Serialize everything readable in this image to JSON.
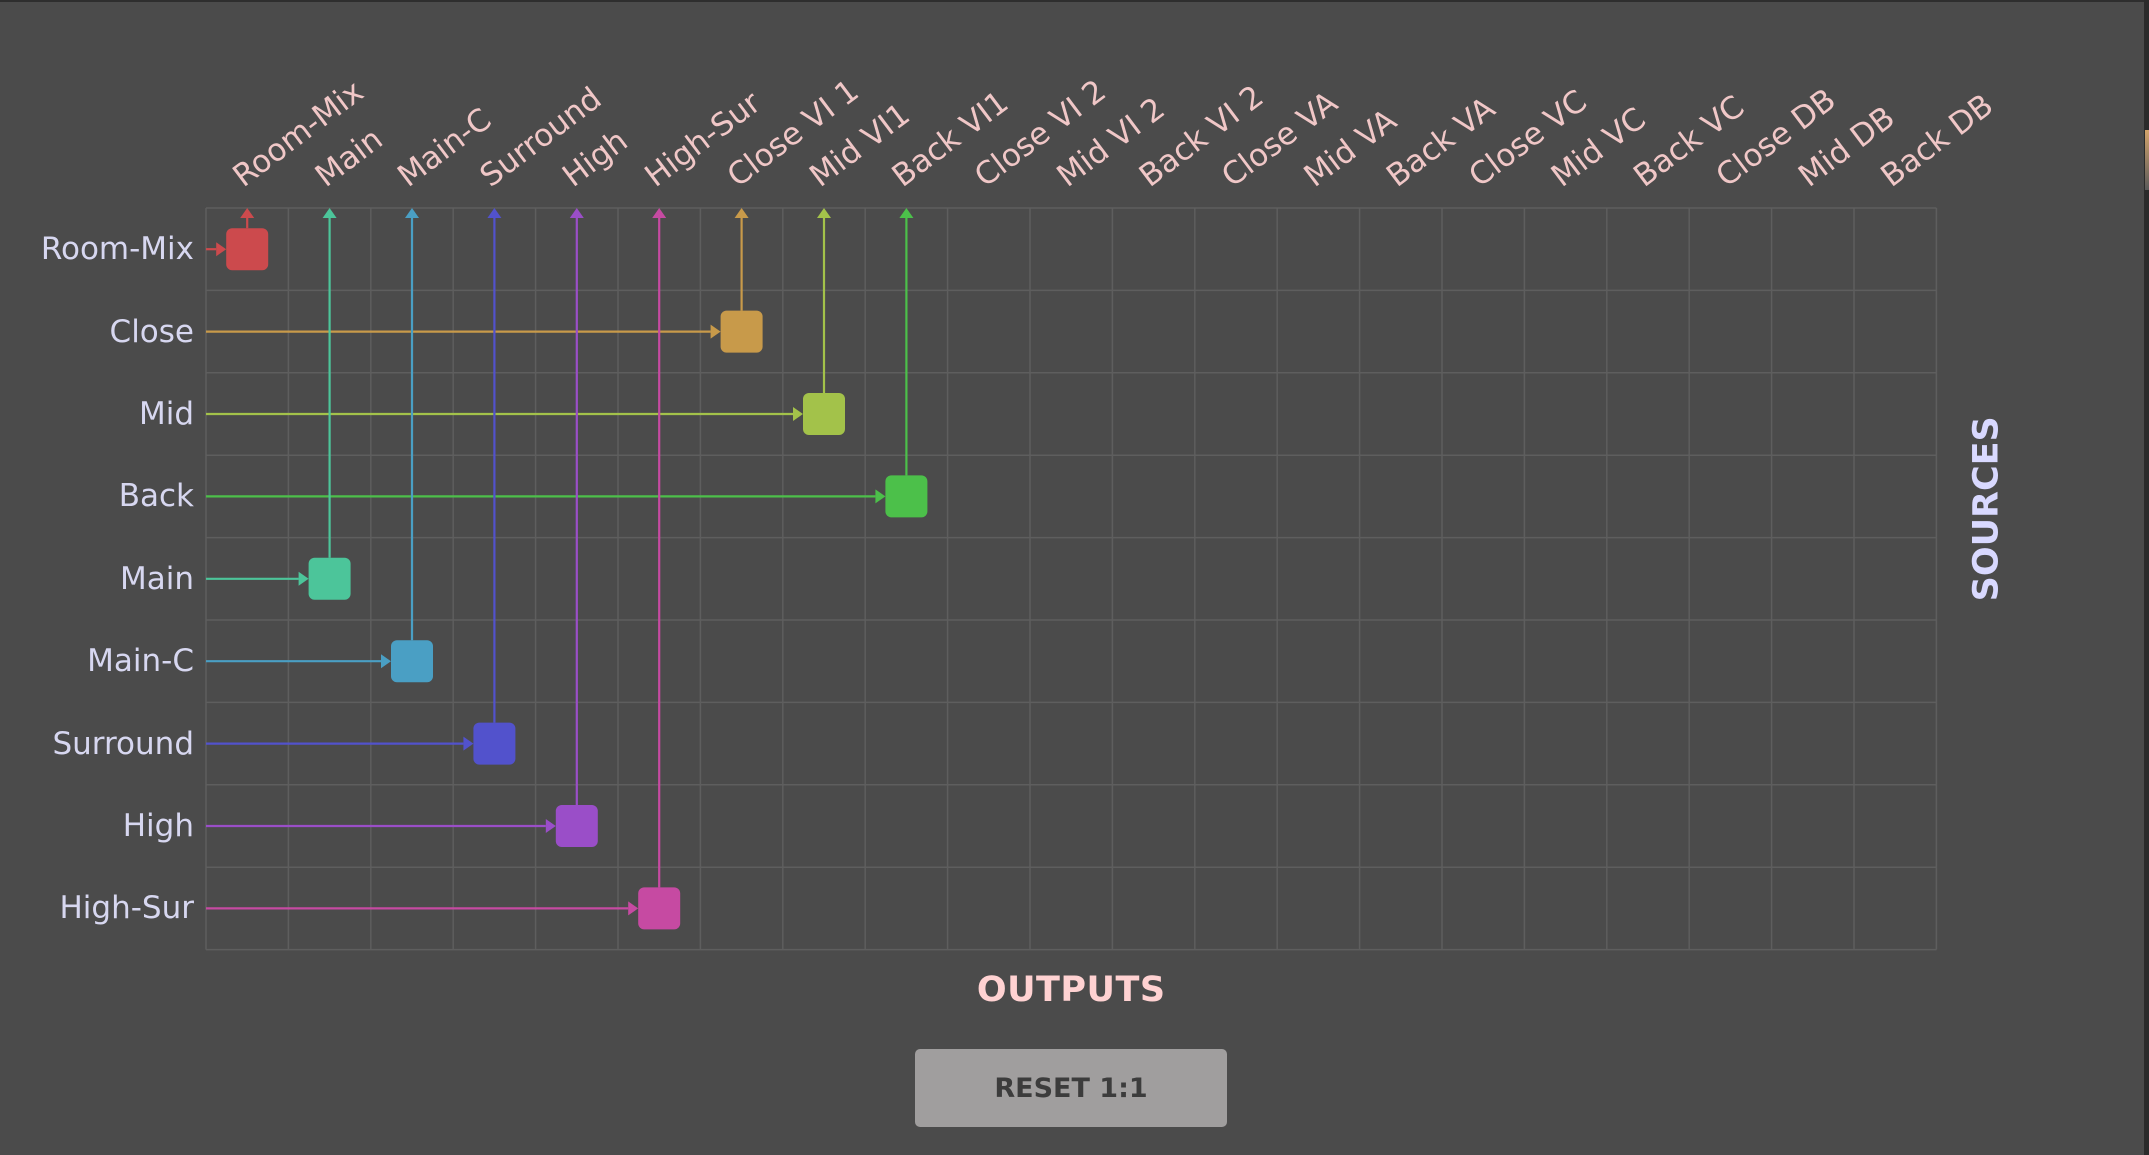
{
  "outputs_title": "OUTPUTS",
  "sources_title": "SOURCES",
  "reset_label": "RESET 1:1",
  "colors": {
    "background": "#4b4b4b",
    "grid_line": "#5e5e5e",
    "output_label": "#f0c7c7",
    "source_label": "#d7d7f0",
    "button_bg": "#a09e9e"
  },
  "outputs": [
    "Room-Mix",
    "Main",
    "Main-C",
    "Surround",
    "High",
    "High-Sur",
    "Close VI 1",
    "Mid VI1",
    "Back VI1",
    "Close VI 2",
    "Mid VI 2",
    "Back VI 2",
    "Close VA",
    "Mid VA",
    "Back VA",
    "Close VC",
    "Mid VC",
    "Back VC",
    "Close DB",
    "Mid DB",
    "Back DB"
  ],
  "sources": [
    "Room-Mix",
    "Close",
    "Mid",
    "Back",
    "Main",
    "Main-C",
    "Surround",
    "High",
    "High-Sur"
  ],
  "routes": [
    {
      "source": 0,
      "output": 0,
      "color": "#cc4a4d"
    },
    {
      "source": 1,
      "output": 6,
      "color": "#c89a4a"
    },
    {
      "source": 2,
      "output": 7,
      "color": "#a3c24a"
    },
    {
      "source": 3,
      "output": 8,
      "color": "#4cc04a"
    },
    {
      "source": 4,
      "output": 1,
      "color": "#4cc59a"
    },
    {
      "source": 5,
      "output": 2,
      "color": "#4a9fc4"
    },
    {
      "source": 6,
      "output": 3,
      "color": "#5252cc"
    },
    {
      "source": 7,
      "output": 4,
      "color": "#9a4ec8"
    },
    {
      "source": 8,
      "output": 5,
      "color": "#c64aa2"
    }
  ]
}
